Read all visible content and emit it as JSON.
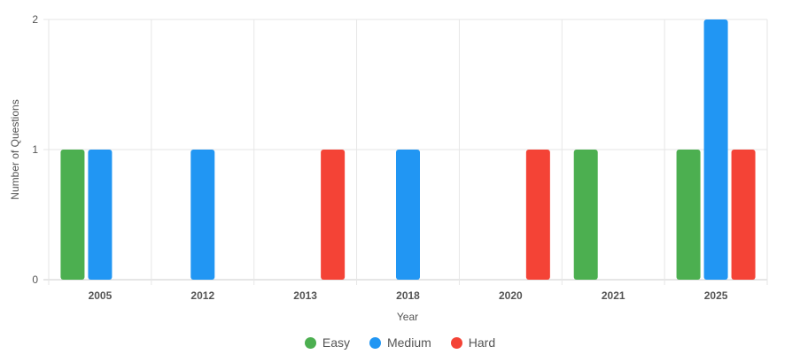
{
  "chart_data": {
    "type": "bar",
    "categories": [
      "2005",
      "2012",
      "2013",
      "2018",
      "2020",
      "2021",
      "2025"
    ],
    "series": [
      {
        "name": "Easy",
        "color": "#4caf50",
        "values": [
          1,
          0,
          0,
          0,
          0,
          1,
          1
        ]
      },
      {
        "name": "Medium",
        "color": "#2196f3",
        "values": [
          1,
          1,
          0,
          1,
          0,
          0,
          2
        ]
      },
      {
        "name": "Hard",
        "color": "#f44336",
        "values": [
          0,
          0,
          1,
          0,
          1,
          0,
          1
        ]
      }
    ],
    "xlabel": "Year",
    "ylabel": "Number of Questions",
    "ylim": [
      0,
      2
    ],
    "yticks": [
      "0",
      "1",
      "2"
    ],
    "grid": true,
    "legend_position": "bottom"
  }
}
